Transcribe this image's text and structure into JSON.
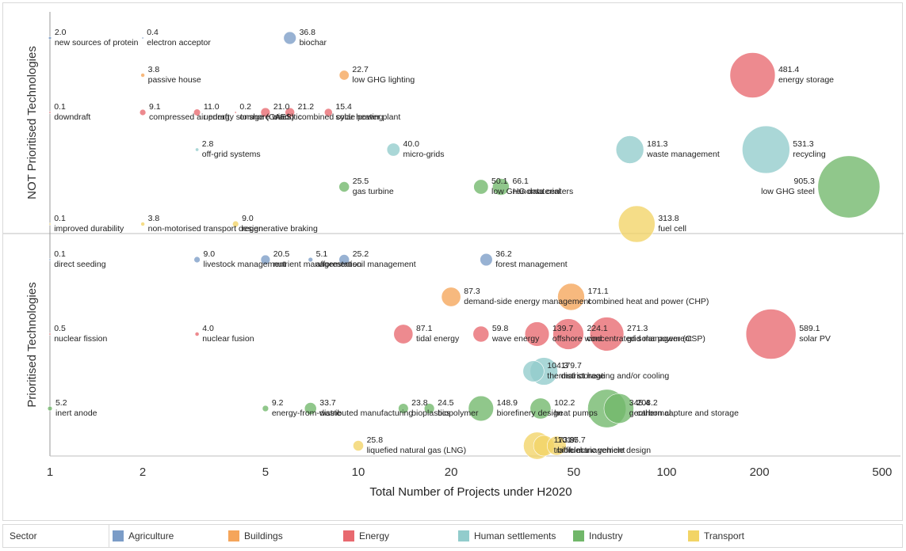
{
  "chart_data": {
    "type": "scatter",
    "xlabel": "Total Number of Projects under H2020",
    "xscale": "log",
    "xlim": [
      1,
      600
    ],
    "x_ticks": [
      1,
      2,
      5,
      10,
      20,
      50,
      100,
      200,
      500
    ],
    "x_tick_labels": [
      "1",
      "2",
      "5",
      "10",
      "20",
      "50",
      "100",
      "200",
      "500"
    ],
    "size_encoding": "bubble area ~ printed value",
    "panels": [
      {
        "id": "not",
        "label": "NOT Prioritised Technologies"
      },
      {
        "id": "pri",
        "label": "Prioritised Technologies"
      }
    ],
    "sectors": [
      {
        "name": "Agriculture",
        "color": "#7b9cc7"
      },
      {
        "name": "Buildings",
        "color": "#f5a55a"
      },
      {
        "name": "Energy",
        "color": "#e8696f"
      },
      {
        "name": "Human settlements",
        "color": "#92cccc"
      },
      {
        "name": "Industry",
        "color": "#71b76a"
      },
      {
        "name": "Transport",
        "color": "#f2d466"
      }
    ],
    "points": [
      {
        "panel": "not",
        "row": 1,
        "x": 1,
        "value": "2.0",
        "label": "new sources of protein",
        "sector": "Agriculture"
      },
      {
        "panel": "not",
        "row": 1,
        "x": 2,
        "value": "0.4",
        "label": "electron acceptor",
        "sector": "Agriculture"
      },
      {
        "panel": "not",
        "row": 1,
        "x": 6,
        "value": "36.8",
        "label": "biochar",
        "sector": "Agriculture"
      },
      {
        "panel": "not",
        "row": 2,
        "x": 2,
        "value": "3.8",
        "label": "passive house",
        "sector": "Buildings"
      },
      {
        "panel": "not",
        "row": 2,
        "x": 9,
        "value": "22.7",
        "label": "low GHG lighting",
        "sector": "Buildings"
      },
      {
        "panel": "not",
        "row": 2,
        "x": 190,
        "value": "481.4",
        "label": "energy storage",
        "sector": "Energy"
      },
      {
        "panel": "not",
        "row": 3,
        "x": 1,
        "value": "0.1",
        "label": "downdraft",
        "sector": "Energy"
      },
      {
        "panel": "not",
        "row": 3,
        "x": 2,
        "value": "9.1",
        "label": "compressed air energy storage (CAES)",
        "sector": "Energy"
      },
      {
        "panel": "not",
        "row": 3,
        "x": 3,
        "value": "11.0",
        "label": "updraft",
        "sector": "Energy"
      },
      {
        "panel": "not",
        "row": 3,
        "x": 4,
        "value": "0.2",
        "label": "onshore wind",
        "sector": "Energy"
      },
      {
        "panel": "not",
        "row": 3,
        "x": 5,
        "value": "21.0",
        "label": "osmotic",
        "sector": "Energy"
      },
      {
        "panel": "not",
        "row": 3,
        "x": 6,
        "value": "21.2",
        "label": "combined cycle power plant",
        "sector": "Energy"
      },
      {
        "panel": "not",
        "row": 3,
        "x": 8,
        "value": "15.4",
        "label": "solar heating",
        "sector": "Energy"
      },
      {
        "panel": "not",
        "row": 4,
        "x": 3,
        "value": "2.8",
        "label": "off-grid systems",
        "sector": "Human settlements"
      },
      {
        "panel": "not",
        "row": 4,
        "x": 13,
        "value": "40.0",
        "label": "micro-grids",
        "sector": "Human settlements"
      },
      {
        "panel": "not",
        "row": 4,
        "x": 76,
        "value": "181.3",
        "label": "waste management",
        "sector": "Human settlements"
      },
      {
        "panel": "not",
        "row": 4,
        "x": 210,
        "value": "531.3",
        "label": "recycling",
        "sector": "Human settlements"
      },
      {
        "panel": "not",
        "row": 5,
        "x": 9,
        "value": "25.5",
        "label": "gas turbine",
        "sector": "Industry"
      },
      {
        "panel": "not",
        "row": 5,
        "x": 25,
        "value": "50.1",
        "label": "low GHG data centers",
        "sector": "Industry"
      },
      {
        "panel": "not",
        "row": 5,
        "x": 29,
        "value": "66.1",
        "label": "nanomaterial",
        "sector": "Industry"
      },
      {
        "panel": "not",
        "row": 5,
        "x": 390,
        "value": "905.3",
        "label": "low GHG steel",
        "sector": "Industry"
      },
      {
        "panel": "not",
        "row": 6,
        "x": 1,
        "value": "0.1",
        "label": "improved durability",
        "sector": "Transport"
      },
      {
        "panel": "not",
        "row": 6,
        "x": 2,
        "value": "3.8",
        "label": "non-motorised transport design",
        "sector": "Transport"
      },
      {
        "panel": "not",
        "row": 6,
        "x": 4,
        "value": "9.0",
        "label": "regenerative braking",
        "sector": "Transport"
      },
      {
        "panel": "not",
        "row": 6,
        "x": 80,
        "value": "313.8",
        "label": "fuel cell",
        "sector": "Transport"
      },
      {
        "panel": "pri",
        "row": 1,
        "x": 1,
        "value": "0.1",
        "label": "direct seeding",
        "sector": "Agriculture"
      },
      {
        "panel": "pri",
        "row": 1,
        "x": 3,
        "value": "9.0",
        "label": "livestock management",
        "sector": "Agriculture"
      },
      {
        "panel": "pri",
        "row": 1,
        "x": 5,
        "value": "20.5",
        "label": "nutrient management",
        "sector": "Agriculture"
      },
      {
        "panel": "pri",
        "row": 1,
        "x": 7,
        "value": "5.1",
        "label": "afforestation",
        "sector": "Agriculture"
      },
      {
        "panel": "pri",
        "row": 1,
        "x": 9,
        "value": "25.2",
        "label": "soil management",
        "sector": "Agriculture"
      },
      {
        "panel": "pri",
        "row": 1,
        "x": 26,
        "value": "36.2",
        "label": "forest management",
        "sector": "Agriculture"
      },
      {
        "panel": "pri",
        "row": 2,
        "x": 20,
        "value": "87.3",
        "label": "demand-side energy management",
        "sector": "Buildings"
      },
      {
        "panel": "pri",
        "row": 2,
        "x": 49,
        "value": "171.1",
        "label": "combined heat and power (CHP)",
        "sector": "Buildings"
      },
      {
        "panel": "pri",
        "row": 3,
        "x": 1,
        "value": "0.5",
        "label": "nuclear fission",
        "sector": "Energy"
      },
      {
        "panel": "pri",
        "row": 3,
        "x": 3,
        "value": "4.0",
        "label": "nuclear fusion",
        "sector": "Energy"
      },
      {
        "panel": "pri",
        "row": 3,
        "x": 14,
        "value": "87.1",
        "label": "tidal energy",
        "sector": "Energy"
      },
      {
        "panel": "pri",
        "row": 3,
        "x": 25,
        "value": "59.8",
        "label": "wave energy",
        "sector": "Energy"
      },
      {
        "panel": "pri",
        "row": 3,
        "x": 38,
        "value": "139.7",
        "label": "offshore wind",
        "sector": "Energy"
      },
      {
        "panel": "pri",
        "row": 3,
        "x": 48,
        "value": "224.1",
        "label": "concentrated solar power (CSP)",
        "sector": "Energy"
      },
      {
        "panel": "pri",
        "row": 3,
        "x": 64,
        "value": "271.3",
        "label": "grid management",
        "sector": "Energy"
      },
      {
        "panel": "pri",
        "row": 3,
        "x": 218,
        "value": "589.1",
        "label": "solar PV",
        "sector": "Energy"
      },
      {
        "panel": "pri",
        "row": 4,
        "x": 37,
        "value": "104.3",
        "label": "thermal storage",
        "sector": "Human settlements"
      },
      {
        "panel": "pri",
        "row": 4,
        "x": 40,
        "value": "179.7",
        "label": "district heating and/or cooling",
        "sector": "Human settlements"
      },
      {
        "panel": "pri",
        "row": 5,
        "x": 1,
        "value": "5.2",
        "label": "inert anode",
        "sector": "Industry"
      },
      {
        "panel": "pri",
        "row": 5,
        "x": 5,
        "value": "9.2",
        "label": "energy-from-waste",
        "sector": "Industry"
      },
      {
        "panel": "pri",
        "row": 5,
        "x": 7,
        "value": "33.7",
        "label": "distributed manufacturing",
        "sector": "Industry"
      },
      {
        "panel": "pri",
        "row": 5,
        "x": 14,
        "value": "23.8",
        "label": "bioplastics",
        "sector": "Industry"
      },
      {
        "panel": "pri",
        "row": 5,
        "x": 17,
        "value": "24.5",
        "label": "biopolymer",
        "sector": "Industry"
      },
      {
        "panel": "pri",
        "row": 5,
        "x": 25,
        "value": "148.9",
        "label": "biorefinery design",
        "sector": "Industry"
      },
      {
        "panel": "pri",
        "row": 5,
        "x": 39,
        "value": "102.2",
        "label": "heat pumps",
        "sector": "Industry"
      },
      {
        "panel": "pri",
        "row": 5,
        "x": 64,
        "value": "345.4",
        "label": "geothermal",
        "sector": "Industry"
      },
      {
        "panel": "pri",
        "row": 5,
        "x": 70,
        "value": "208.2",
        "label": "carbon capture and storage",
        "sector": "Industry"
      },
      {
        "panel": "pri",
        "row": 6,
        "x": 10,
        "value": "25.8",
        "label": "liquefied natural gas (LNG)",
        "sector": "Transport"
      },
      {
        "panel": "pri",
        "row": 6,
        "x": 38,
        "value": "173.9",
        "label": "traffic management",
        "sector": "Transport"
      },
      {
        "panel": "pri",
        "row": 6,
        "x": 40,
        "value": "101.7",
        "label": "biofuel",
        "sector": "Transport"
      },
      {
        "panel": "pri",
        "row": 6,
        "x": 44,
        "value": "85.7",
        "label": "electric vehicle design",
        "sector": "Transport"
      }
    ]
  },
  "legend": {
    "title": "Sector",
    "items": [
      "Agriculture",
      "Buildings",
      "Energy",
      "Human settlements",
      "Industry",
      "Transport"
    ]
  }
}
